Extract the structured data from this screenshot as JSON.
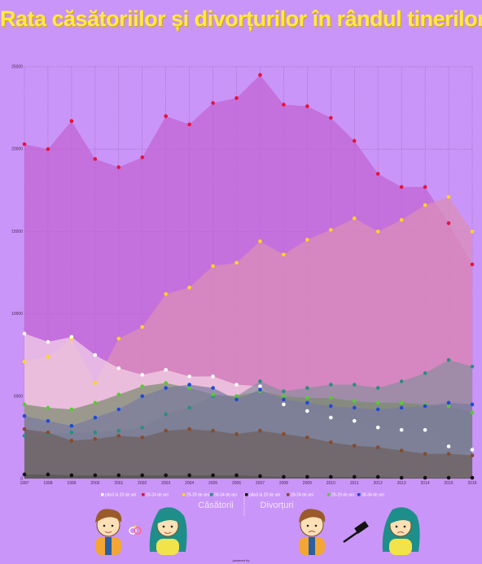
{
  "title": "Rata căsătoriilor și divorțurilor în rândul tinerilor",
  "footer": "powered by",
  "groups": {
    "marriages": "Căsătorii",
    "divorces": "Divorțuri"
  },
  "colors": {
    "background": "#ca95f8",
    "title": "#ffe94a"
  },
  "chart_data": {
    "type": "area",
    "x": [
      1997,
      1998,
      1999,
      2000,
      2001,
      2002,
      2003,
      2004,
      2005,
      2006,
      2007,
      2008,
      2009,
      2010,
      2011,
      2012,
      2013,
      2014,
      2015,
      2016
    ],
    "x_tick_labels": [
      "1997",
      "1998",
      "1999",
      "2000",
      "2001",
      "2002",
      "2003",
      "2004",
      "2005",
      "2006",
      "2007",
      "2008",
      "2009",
      "2010",
      "2011",
      "2012",
      "2013",
      "2014",
      "2015",
      "2016"
    ],
    "ylim": [
      0,
      25000
    ],
    "y_ticks": [
      0,
      5000,
      10000,
      15000,
      20000,
      25000
    ],
    "grid": true,
    "legend_position": "bottom",
    "series": [
      {
        "name": "până la 20 de ani",
        "group": "marriages",
        "color": "#ffffff",
        "fill": "#f3d2e6",
        "values": [
          8800,
          8300,
          8600,
          7500,
          6700,
          6300,
          6600,
          6200,
          6200,
          5700,
          5600,
          4500,
          4100,
          3700,
          3500,
          3100,
          2950,
          2950,
          1950,
          1750
        ]
      },
      {
        "name": "20-24 de ani",
        "group": "marriages",
        "color": "#e5133a",
        "fill": "#c263d2",
        "values": [
          20300,
          20000,
          21700,
          19400,
          18900,
          19500,
          22000,
          21500,
          22800,
          23100,
          24500,
          22700,
          22600,
          21900,
          20500,
          18500,
          17700,
          17700,
          15500,
          13000
        ]
      },
      {
        "name": "25-29 de ani",
        "group": "marriages",
        "color": "#ffd61a",
        "fill": "#dc8fb4",
        "values": [
          7100,
          7400,
          8500,
          5800,
          8500,
          9200,
          11200,
          11600,
          12900,
          13100,
          14400,
          13600,
          14500,
          15100,
          15800,
          15000,
          15700,
          16600,
          17100,
          15000
        ]
      },
      {
        "name": "30-34 de ani",
        "group": "marriages",
        "color": "#2a8f7e",
        "fill": "#8a8ea0",
        "values": [
          2600,
          2700,
          2800,
          2800,
          2900,
          3100,
          3900,
          4300,
          5000,
          5000,
          5900,
          5300,
          5500,
          5700,
          5700,
          5500,
          5900,
          6400,
          7200,
          6800
        ]
      },
      {
        "name": "până la 20 de ani",
        "group": "divorces",
        "color": "#111111",
        "fill": "#555555",
        "values": [
          250,
          250,
          200,
          200,
          200,
          200,
          200,
          200,
          200,
          200,
          150,
          100,
          100,
          100,
          100,
          100,
          50,
          50,
          50,
          50
        ]
      },
      {
        "name": "20-24 de ani",
        "group": "divorces",
        "color": "#8a4a2a",
        "fill": "#6d6060",
        "values": [
          3000,
          2800,
          2300,
          2400,
          2600,
          2500,
          2900,
          3000,
          2900,
          2700,
          2900,
          2700,
          2500,
          2200,
          2000,
          1900,
          1700,
          1500,
          1500,
          1400
        ]
      },
      {
        "name": "25-29 de ani",
        "group": "divorces",
        "color": "#55cc33",
        "fill": "#7c8a70",
        "values": [
          4500,
          4300,
          4200,
          4600,
          5100,
          5600,
          5800,
          5500,
          5100,
          5000,
          5300,
          5000,
          4900,
          4900,
          4700,
          4600,
          4600,
          4500,
          4400,
          4000
        ]
      },
      {
        "name": "30-34 de ani",
        "group": "divorces",
        "color": "#1f4ad8",
        "fill": "#7a7aa0",
        "values": [
          3800,
          3500,
          3200,
          3700,
          4200,
          5000,
          5500,
          5700,
          5500,
          4800,
          5400,
          4800,
          4600,
          4400,
          4300,
          4200,
          4300,
          4400,
          4600,
          4500
        ]
      }
    ]
  }
}
